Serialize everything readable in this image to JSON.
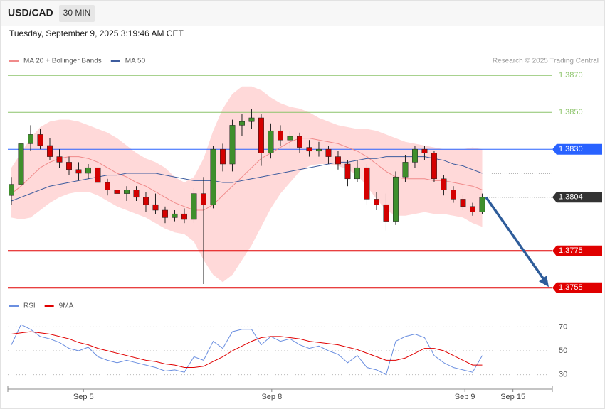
{
  "header": {
    "symbol": "USD/CAD",
    "timeframe": "30 MIN",
    "timestamp": "Tuesday, September 9, 2025 3:19:46 AM CET",
    "credit": "Research © 2025 Trading Central"
  },
  "chart_data": [
    {
      "type": "candlestick",
      "open": [
        1.3805,
        1.3811,
        1.3833,
        1.3838,
        1.3832,
        1.3826,
        1.3823,
        1.3819,
        1.3817,
        1.382,
        1.3812,
        1.3808,
        1.3806,
        1.3808,
        1.3804,
        1.38,
        1.3797,
        1.3793,
        1.3795,
        1.3792,
        1.3806,
        1.38,
        1.383,
        1.3822,
        1.3843,
        1.3845,
        1.3847,
        1.3828,
        1.384,
        1.3835,
        1.3837,
        1.3831,
        1.3829,
        1.383,
        1.3826,
        1.3822,
        1.3814,
        1.382,
        1.3803,
        1.38,
        1.3791,
        1.3815,
        1.3823,
        1.383,
        1.3828,
        1.3814,
        1.3808,
        1.3803,
        1.3799,
        1.3796
      ],
      "high": [
        1.3815,
        1.3836,
        1.3843,
        1.3841,
        1.3836,
        1.383,
        1.3826,
        1.3823,
        1.3822,
        1.3821,
        1.3814,
        1.3811,
        1.381,
        1.381,
        1.3807,
        1.3806,
        1.3799,
        1.3797,
        1.3798,
        1.3809,
        1.3815,
        1.3832,
        1.3833,
        1.3846,
        1.3849,
        1.3852,
        1.3849,
        1.3844,
        1.3843,
        1.384,
        1.3839,
        1.3835,
        1.3834,
        1.3832,
        1.3829,
        1.3824,
        1.3824,
        1.3822,
        1.3807,
        1.3806,
        1.3818,
        1.3827,
        1.3832,
        1.3832,
        1.3829,
        1.3816,
        1.381,
        1.3805,
        1.3801,
        1.3806
      ],
      "low": [
        1.38,
        1.3808,
        1.3829,
        1.383,
        1.3824,
        1.382,
        1.3816,
        1.3813,
        1.3814,
        1.381,
        1.3805,
        1.3803,
        1.3802,
        1.3802,
        1.3796,
        1.3795,
        1.379,
        1.3791,
        1.379,
        1.379,
        1.3757,
        1.3798,
        1.3818,
        1.3818,
        1.3837,
        1.3841,
        1.3821,
        1.3825,
        1.3832,
        1.3831,
        1.3828,
        1.3826,
        1.3826,
        1.3822,
        1.3819,
        1.381,
        1.3812,
        1.38,
        1.3797,
        1.3786,
        1.3789,
        1.3812,
        1.382,
        1.3824,
        1.3812,
        1.3805,
        1.3801,
        1.3797,
        1.3794,
        1.3795
      ],
      "close": [
        1.3811,
        1.3833,
        1.3838,
        1.3832,
        1.3826,
        1.3823,
        1.3819,
        1.3817,
        1.382,
        1.3812,
        1.3808,
        1.3806,
        1.3808,
        1.3804,
        1.38,
        1.3797,
        1.3793,
        1.3795,
        1.3792,
        1.3806,
        1.38,
        1.383,
        1.3822,
        1.3843,
        1.3845,
        1.3847,
        1.3828,
        1.384,
        1.3835,
        1.3837,
        1.3831,
        1.3829,
        1.383,
        1.3826,
        1.3822,
        1.3814,
        1.382,
        1.3803,
        1.38,
        1.3791,
        1.3815,
        1.3823,
        1.383,
        1.3828,
        1.3814,
        1.3808,
        1.3803,
        1.3799,
        1.3796,
        1.3804
      ],
      "up_color": "#3f8f2c",
      "down_color": "#d40000",
      "series": [
        {
          "name": "MA 20 + Bollinger Bands",
          "color": "#f08a8a",
          "band_color": "#ffd9d9",
          "values": [
            1.3806,
            1.381,
            1.3815,
            1.382,
            1.3823,
            1.3825,
            1.3826,
            1.3826,
            1.3825,
            1.3823,
            1.382,
            1.3817,
            1.3815,
            1.3812,
            1.381,
            1.3807,
            1.3804,
            1.3801,
            1.3799,
            1.3797,
            1.3797,
            1.38,
            1.3805,
            1.381,
            1.3815,
            1.382,
            1.3825,
            1.3828,
            1.3831,
            1.3834,
            1.3836,
            1.3836,
            1.3835,
            1.3834,
            1.3833,
            1.3831,
            1.3829,
            1.3826,
            1.3822,
            1.3818,
            1.3815,
            1.3814,
            1.3814,
            1.3814,
            1.3813,
            1.3813,
            1.3812,
            1.3811,
            1.381,
            1.3808
          ],
          "upper": [
            1.382,
            1.3828,
            1.3836,
            1.3842,
            1.3845,
            1.3846,
            1.3846,
            1.3845,
            1.3843,
            1.3841,
            1.3839,
            1.3836,
            1.3832,
            1.3828,
            1.3825,
            1.3823,
            1.382,
            1.3815,
            1.3812,
            1.3815,
            1.3825,
            1.384,
            1.3852,
            1.386,
            1.3864,
            1.3864,
            1.3862,
            1.3858,
            1.3855,
            1.3853,
            1.3852,
            1.385,
            1.3847,
            1.3845,
            1.3843,
            1.3842,
            1.3841,
            1.3841,
            1.384,
            1.3838,
            1.3836,
            1.3834,
            1.3833,
            1.3832,
            1.3831,
            1.383,
            1.383,
            1.383,
            1.3831,
            1.383
          ],
          "lower": [
            1.3793,
            1.3792,
            1.3793,
            1.3797,
            1.3801,
            1.3804,
            1.3806,
            1.3807,
            1.3807,
            1.3805,
            1.3802,
            1.3799,
            1.3797,
            1.3795,
            1.3793,
            1.379,
            1.3787,
            1.3785,
            1.3784,
            1.378,
            1.377,
            1.3762,
            1.3758,
            1.3762,
            1.377,
            1.3778,
            1.3788,
            1.3798,
            1.3806,
            1.3812,
            1.3818,
            1.3821,
            1.3822,
            1.3822,
            1.3821,
            1.3819,
            1.3816,
            1.381,
            1.3803,
            1.3797,
            1.3794,
            1.3794,
            1.3795,
            1.3796,
            1.3795,
            1.3795,
            1.3794,
            1.3793,
            1.379,
            1.3788
          ]
        },
        {
          "name": "MA 50",
          "color": "#3d5c9e",
          "values": [
            1.3802,
            1.3804,
            1.3806,
            1.3808,
            1.381,
            1.3811,
            1.3812,
            1.3813,
            1.3814,
            1.3815,
            1.3816,
            1.3816,
            1.3817,
            1.3817,
            1.3817,
            1.3817,
            1.3816,
            1.3815,
            1.3814,
            1.3813,
            1.3813,
            1.3813,
            1.3812,
            1.3812,
            1.3813,
            1.3814,
            1.3815,
            1.3816,
            1.3817,
            1.3818,
            1.3819,
            1.382,
            1.3821,
            1.3822,
            1.3823,
            1.3823,
            1.3824,
            1.3825,
            1.3825,
            1.3826,
            1.3826,
            1.3826,
            1.3826,
            1.3826,
            1.3825,
            1.3824,
            1.3822,
            1.3821,
            1.3819,
            1.3817
          ]
        }
      ],
      "xlim": [
        -0.37,
        56.3
      ],
      "ylim": [
        1.3752,
        1.3877
      ],
      "yticks": [
        {
          "value": 1.387,
          "label": "1.3870"
        },
        {
          "value": 1.385,
          "label": "1.3850"
        },
        {
          "value": 1.383,
          "label": "1.3830"
        },
        1.3804,
        1.3775,
        1.3755
      ],
      "level_colors": [
        "#8cc46a",
        "#8cc46a",
        "#2962ff",
        "#333333",
        "#e00000",
        "#e00000"
      ],
      "level_styles": [
        "plain",
        "plain",
        "badge",
        "dotted",
        "badge",
        "badge"
      ]
    },
    {
      "type": "line",
      "series": [
        {
          "name": "RSI",
          "color": "#6b8fe0",
          "values": [
            55,
            72,
            68,
            62,
            60,
            57,
            52,
            50,
            53,
            45,
            42,
            40,
            42,
            40,
            38,
            36,
            33,
            34,
            32,
            45,
            42,
            58,
            52,
            66,
            68,
            68,
            55,
            62,
            58,
            60,
            55,
            52,
            54,
            50,
            47,
            40,
            46,
            36,
            34,
            30,
            58,
            62,
            64,
            61,
            46,
            40,
            36,
            34,
            32,
            46
          ]
        },
        {
          "name": "9MA",
          "color": "#e00000",
          "values": [
            64,
            65,
            66,
            65,
            64,
            62,
            60,
            57,
            55,
            52,
            50,
            48,
            46,
            44,
            42,
            41,
            39,
            38,
            36,
            36,
            37,
            41,
            45,
            50,
            54,
            58,
            61,
            62,
            62,
            61,
            60,
            58,
            57,
            56,
            55,
            53,
            51,
            48,
            45,
            42,
            42,
            44,
            48,
            52,
            52,
            50,
            46,
            42,
            38,
            38
          ]
        }
      ],
      "xlim": [
        -0.37,
        56.3
      ],
      "ylim": [
        22,
        78
      ],
      "yticks": [
        70,
        50,
        30
      ],
      "grid": true,
      "xticks": [
        {
          "value": 7.5,
          "label": "Sep 5"
        },
        {
          "value": 27.1,
          "label": "Sep 8"
        },
        {
          "value": 47.2,
          "label": "Sep 9"
        },
        {
          "value": 52.2,
          "label": "Sep 15"
        }
      ]
    }
  ]
}
